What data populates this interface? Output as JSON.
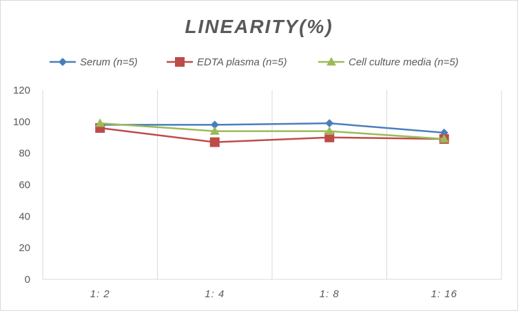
{
  "chart_data": {
    "type": "line",
    "title": "LINEARITY(%)",
    "xlabel": "",
    "ylabel": "",
    "categories": [
      "1:2",
      "1:4",
      "1:8",
      "1:16"
    ],
    "ylim": [
      0,
      120
    ],
    "yticks": [
      0,
      20,
      40,
      60,
      80,
      100,
      120
    ],
    "grid": "vertical",
    "legend_position": "top",
    "series": [
      {
        "name": "Serum (n=5)",
        "values": [
          98,
          98,
          99,
          93
        ],
        "color": "#4a7ebb",
        "marker": "diamond"
      },
      {
        "name": "EDTA plasma (n=5)",
        "values": [
          96,
          87,
          90,
          89
        ],
        "color": "#be4b48",
        "marker": "square"
      },
      {
        "name": "Cell culture media (n=5)",
        "values": [
          99,
          94,
          94,
          89
        ],
        "color": "#9bbb59",
        "marker": "triangle"
      }
    ]
  }
}
